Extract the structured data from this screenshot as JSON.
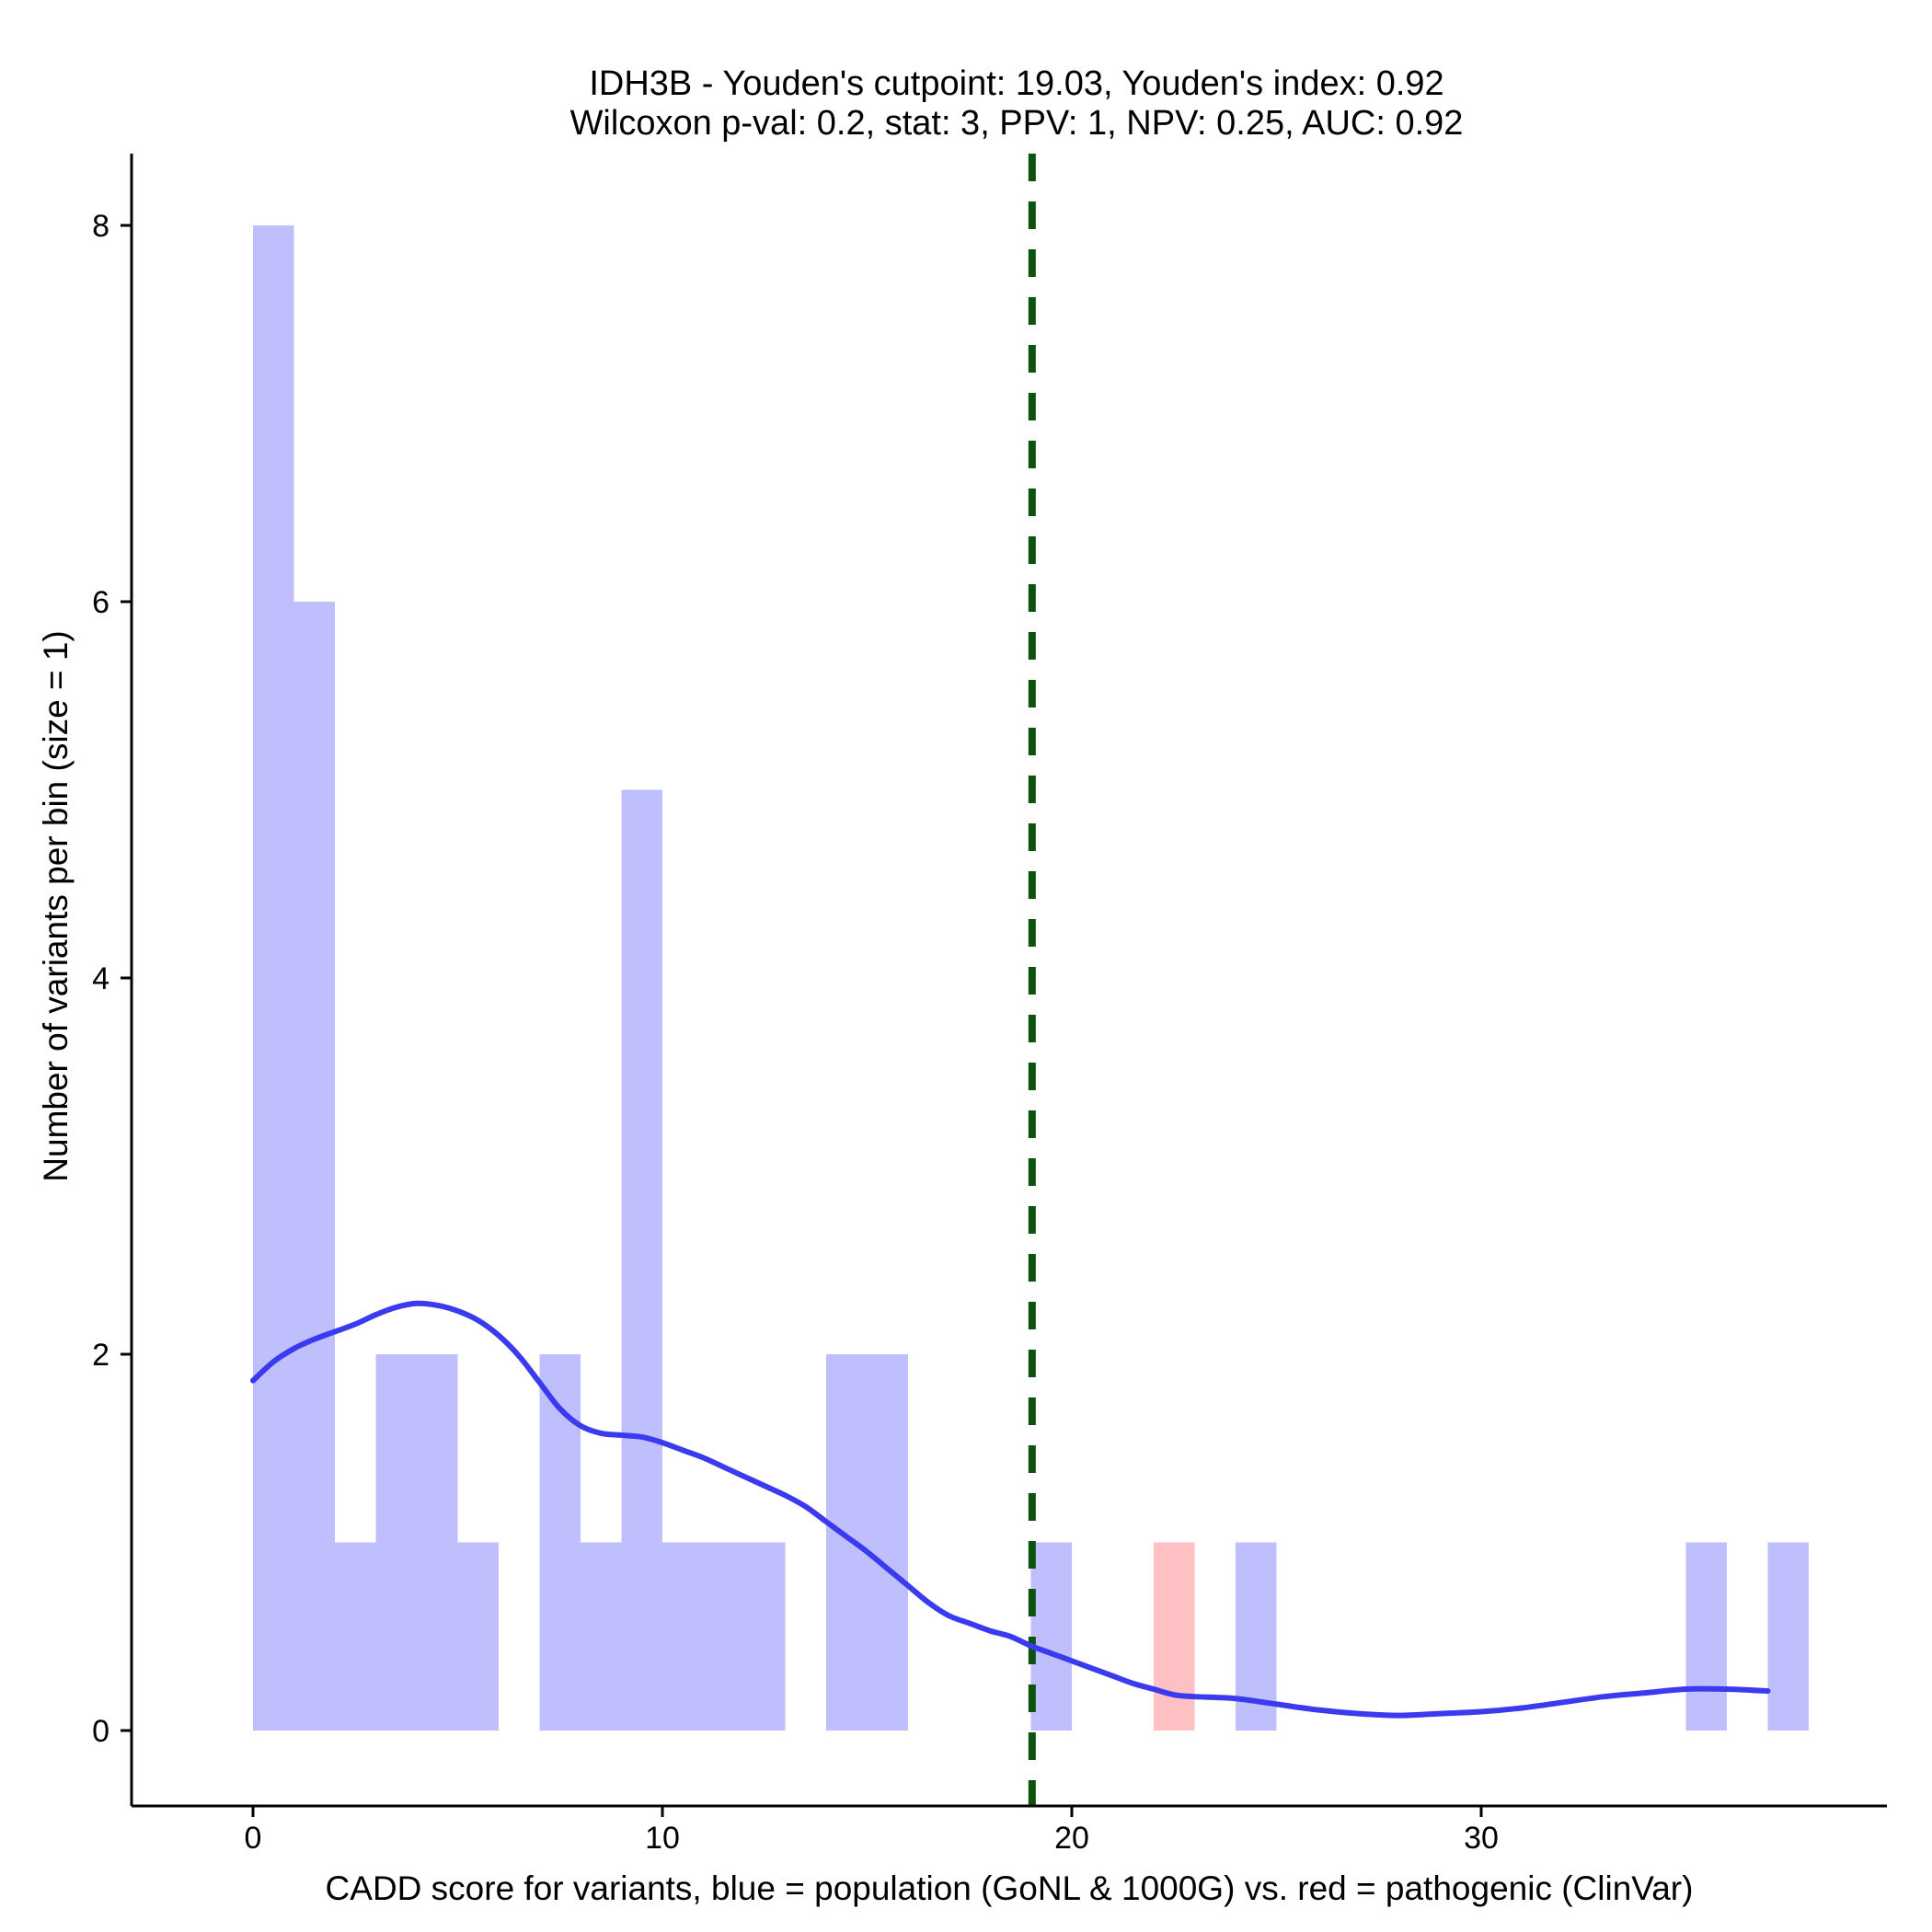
{
  "chart_data": {
    "type": "histogram",
    "title_line1": "IDH3B - Youden's cutpoint: 19.03, Youden's index: 0.92",
    "title_line2": "Wilcoxon p-val: 0.2, stat: 3, PPV: 1, NPV: 0.25, AUC: 0.92",
    "xlabel": "CADD score for variants, blue = population (GoNL & 1000G) vs. red = pathogenic (ClinVar)",
    "ylabel": "Number of variants per bin (size = 1)",
    "xlim": [
      -3,
      40
    ],
    "ylim": [
      -0.4,
      8.4
    ],
    "x_ticks": [
      0,
      10,
      20,
      30
    ],
    "y_ticks": [
      0,
      2,
      4,
      6,
      8
    ],
    "bin_size": 1,
    "cutpoint": 19.03,
    "colors": {
      "population": "#bfbffd",
      "pathogenic": "#fec0c3",
      "density": "#3a3aee",
      "cutpoint": "#0d520d"
    },
    "series": [
      {
        "name": "population",
        "bins": [
          {
            "x0": 0,
            "x1": 1,
            "count": 8
          },
          {
            "x0": 1,
            "x1": 2,
            "count": 6
          },
          {
            "x0": 2,
            "x1": 3,
            "count": 1
          },
          {
            "x0": 3,
            "x1": 4,
            "count": 2
          },
          {
            "x0": 4,
            "x1": 5,
            "count": 2
          },
          {
            "x0": 5,
            "x1": 6,
            "count": 1
          },
          {
            "x0": 7,
            "x1": 8,
            "count": 2
          },
          {
            "x0": 8,
            "x1": 9,
            "count": 1
          },
          {
            "x0": 9,
            "x1": 10,
            "count": 5
          },
          {
            "x0": 10,
            "x1": 11,
            "count": 1
          },
          {
            "x0": 11,
            "x1": 12,
            "count": 1
          },
          {
            "x0": 12,
            "x1": 13,
            "count": 1
          },
          {
            "x0": 14,
            "x1": 15,
            "count": 2
          },
          {
            "x0": 15,
            "x1": 16,
            "count": 2
          },
          {
            "x0": 19,
            "x1": 20,
            "count": 1
          },
          {
            "x0": 24,
            "x1": 25,
            "count": 1
          },
          {
            "x0": 35,
            "x1": 36,
            "count": 1
          },
          {
            "x0": 37,
            "x1": 38,
            "count": 1
          }
        ]
      },
      {
        "name": "pathogenic",
        "bins": [
          {
            "x0": 22,
            "x1": 23,
            "count": 1
          }
        ]
      }
    ],
    "density_curve": [
      [
        0,
        1.86
      ],
      [
        0.5,
        1.96
      ],
      [
        1,
        2.03
      ],
      [
        1.5,
        2.08
      ],
      [
        2,
        2.12
      ],
      [
        2.5,
        2.16
      ],
      [
        3,
        2.21
      ],
      [
        3.5,
        2.25
      ],
      [
        4,
        2.27
      ],
      [
        4.5,
        2.26
      ],
      [
        5,
        2.23
      ],
      [
        5.5,
        2.18
      ],
      [
        6,
        2.1
      ],
      [
        6.5,
        1.99
      ],
      [
        7,
        1.85
      ],
      [
        7.5,
        1.71
      ],
      [
        8,
        1.62
      ],
      [
        8.5,
        1.58
      ],
      [
        9,
        1.57
      ],
      [
        9.5,
        1.56
      ],
      [
        10,
        1.53
      ],
      [
        10.5,
        1.49
      ],
      [
        11,
        1.45
      ],
      [
        11.5,
        1.4
      ],
      [
        12,
        1.35
      ],
      [
        12.5,
        1.3
      ],
      [
        13,
        1.25
      ],
      [
        13.5,
        1.19
      ],
      [
        14,
        1.11
      ],
      [
        14.5,
        1.03
      ],
      [
        15,
        0.95
      ],
      [
        15.5,
        0.86
      ],
      [
        16,
        0.77
      ],
      [
        16.5,
        0.68
      ],
      [
        17,
        0.61
      ],
      [
        17.5,
        0.57
      ],
      [
        18,
        0.53
      ],
      [
        18.5,
        0.5
      ],
      [
        19,
        0.45
      ],
      [
        19.5,
        0.41
      ],
      [
        20,
        0.37
      ],
      [
        20.5,
        0.33
      ],
      [
        21,
        0.29
      ],
      [
        21.5,
        0.25
      ],
      [
        22,
        0.22
      ],
      [
        22.5,
        0.19
      ],
      [
        23,
        0.18
      ],
      [
        24,
        0.17
      ],
      [
        25,
        0.14
      ],
      [
        26,
        0.11
      ],
      [
        27,
        0.09
      ],
      [
        28,
        0.08
      ],
      [
        29,
        0.09
      ],
      [
        30,
        0.1
      ],
      [
        31,
        0.12
      ],
      [
        32,
        0.15
      ],
      [
        33,
        0.18
      ],
      [
        34,
        0.2
      ],
      [
        35,
        0.22
      ],
      [
        36,
        0.22
      ],
      [
        37,
        0.21
      ]
    ]
  }
}
